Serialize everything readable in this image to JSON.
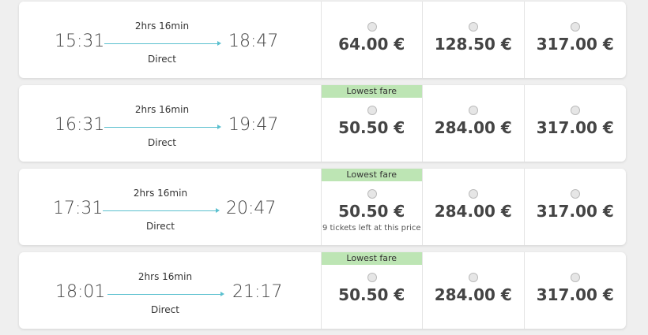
{
  "colors": {
    "accent_line": "#5bc0cf",
    "lowest_fare_badge": "#bde5b4"
  },
  "journeys": [
    {
      "departure": "15:31",
      "arrival": "18:47",
      "duration": "2hrs 16min",
      "stops": "Direct",
      "fares": [
        {
          "price": "64.00 €",
          "badge": "",
          "note": ""
        },
        {
          "price": "128.50 €",
          "badge": "",
          "note": ""
        },
        {
          "price": "317.00 €",
          "badge": "",
          "note": ""
        }
      ]
    },
    {
      "departure": "16:31",
      "arrival": "19:47",
      "duration": "2hrs 16min",
      "stops": "Direct",
      "fares": [
        {
          "price": "50.50 €",
          "badge": "Lowest fare",
          "note": ""
        },
        {
          "price": "284.00 €",
          "badge": "",
          "note": ""
        },
        {
          "price": "317.00 €",
          "badge": "",
          "note": ""
        }
      ]
    },
    {
      "departure": "17:31",
      "arrival": "20:47",
      "duration": "2hrs 16min",
      "stops": "Direct",
      "fares": [
        {
          "price": "50.50 €",
          "badge": "Lowest fare",
          "note": "9 tickets left at this price"
        },
        {
          "price": "284.00 €",
          "badge": "",
          "note": ""
        },
        {
          "price": "317.00 €",
          "badge": "",
          "note": ""
        }
      ]
    },
    {
      "departure": "18:01",
      "arrival": "21:17",
      "duration": "2hrs 16min",
      "stops": "Direct",
      "fares": [
        {
          "price": "50.50 €",
          "badge": "Lowest fare",
          "note": ""
        },
        {
          "price": "284.00 €",
          "badge": "",
          "note": ""
        },
        {
          "price": "317.00 €",
          "badge": "",
          "note": ""
        }
      ]
    }
  ]
}
